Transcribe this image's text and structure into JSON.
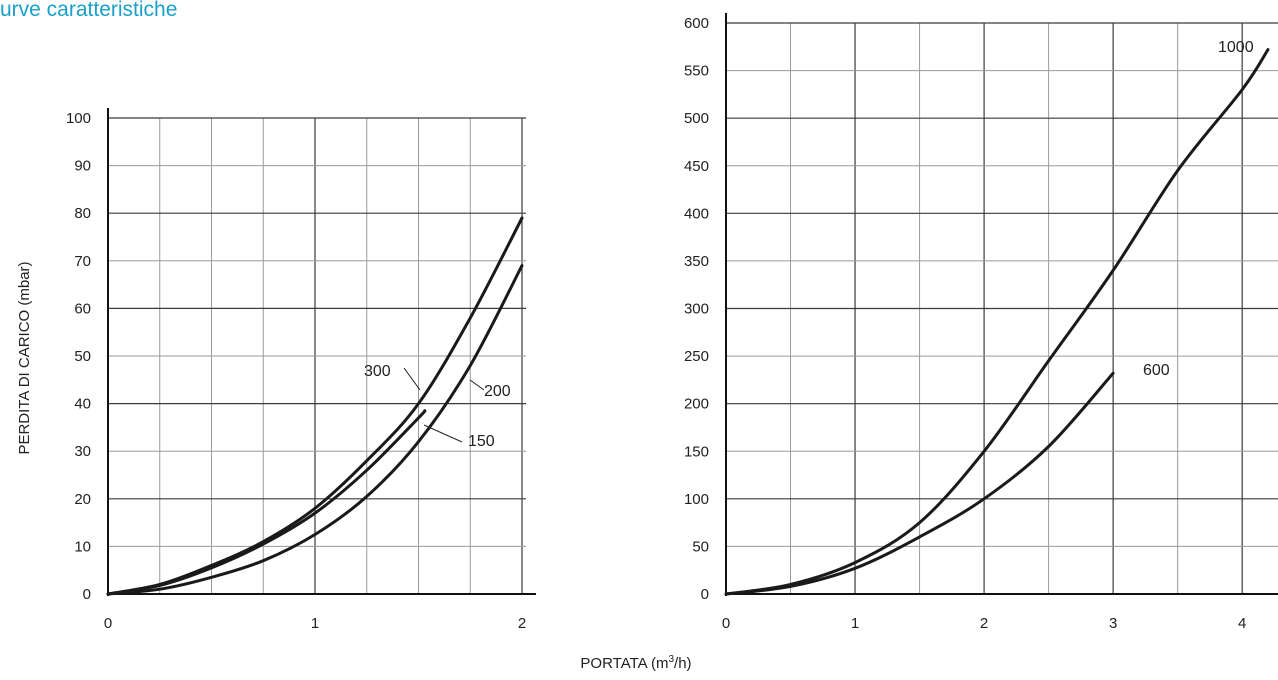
{
  "page": {
    "title": "urve caratteristiche"
  },
  "colors": {
    "title": "#1aa0c9",
    "curve": "#1a1a1a",
    "grid_major": "#3a3a3a",
    "grid_minor": "#9a9a9a"
  },
  "shared": {
    "ylabel": "PERDITA DI CARICO (mbar)",
    "xlabel_main": "PORTATA (m",
    "xlabel_sup": "3",
    "xlabel_tail": "/h)"
  },
  "chart_data": [
    {
      "type": "line",
      "title": "",
      "xlabel": "PORTATA (m³/h)",
      "ylabel": "PERDITA DI CARICO (mbar)",
      "xlim": [
        0,
        2
      ],
      "ylim": [
        0,
        100
      ],
      "x_ticks": [
        "0",
        "1",
        "2"
      ],
      "y_ticks": [
        "0",
        "10",
        "20",
        "30",
        "40",
        "50",
        "60",
        "70",
        "80",
        "90",
        "100"
      ],
      "grid": true,
      "series": [
        {
          "name": "300",
          "x": [
            0,
            0.25,
            0.5,
            0.75,
            1.0,
            1.25,
            1.5,
            1.75,
            2.0
          ],
          "y": [
            0,
            2,
            6,
            11,
            18,
            28,
            40,
            58,
            79
          ]
        },
        {
          "name": "150",
          "x": [
            0,
            0.25,
            0.5,
            0.75,
            1.0,
            1.25,
            1.5,
            1.53
          ],
          "y": [
            0,
            1.8,
            5.5,
            10.5,
            17,
            26,
            37,
            38.5
          ]
        },
        {
          "name": "200",
          "x": [
            0,
            0.25,
            0.5,
            0.75,
            1.0,
            1.25,
            1.5,
            1.75,
            2.0
          ],
          "y": [
            0,
            1,
            3.5,
            7,
            12.5,
            20.5,
            32,
            48,
            69
          ]
        }
      ]
    },
    {
      "type": "line",
      "title": "",
      "xlabel": "PORTATA (m³/h)",
      "ylabel": "",
      "xlim": [
        0,
        4.2
      ],
      "ylim": [
        0,
        600
      ],
      "x_ticks": [
        "0",
        "1",
        "2",
        "3",
        "4"
      ],
      "y_ticks": [
        "0",
        "50",
        "100",
        "150",
        "200",
        "250",
        "300",
        "350",
        "400",
        "450",
        "500",
        "550",
        "600"
      ],
      "grid": true,
      "series": [
        {
          "name": "1000",
          "x": [
            0,
            0.5,
            1.0,
            1.5,
            2.0,
            2.5,
            3.0,
            3.5,
            4.0,
            4.2
          ],
          "y": [
            0,
            10,
            33,
            75,
            150,
            245,
            340,
            445,
            530,
            572
          ]
        },
        {
          "name": "600",
          "x": [
            0,
            0.5,
            1.0,
            1.5,
            2.0,
            2.5,
            3.0
          ],
          "y": [
            0,
            8,
            27,
            60,
            100,
            155,
            232
          ]
        }
      ]
    }
  ]
}
